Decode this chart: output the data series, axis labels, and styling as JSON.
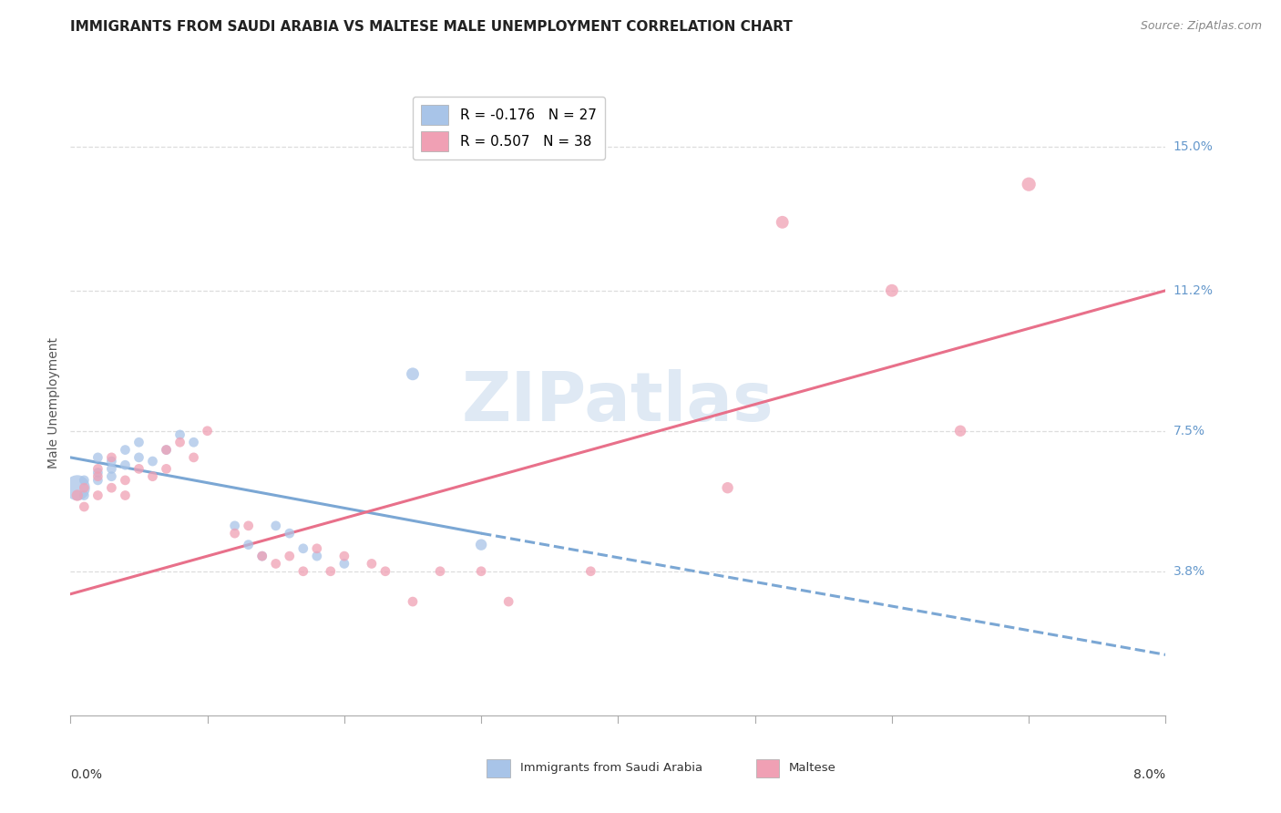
{
  "title": "IMMIGRANTS FROM SAUDI ARABIA VS MALTESE MALE UNEMPLOYMENT CORRELATION CHART",
  "source": "Source: ZipAtlas.com",
  "ylabel": "Male Unemployment",
  "ytick_labels": [
    "15.0%",
    "11.2%",
    "7.5%",
    "3.8%"
  ],
  "ytick_values": [
    0.15,
    0.112,
    0.075,
    0.038
  ],
  "xmin": 0.0,
  "xmax": 0.08,
  "ymin": 0.0,
  "ymax": 0.165,
  "legend_entries": [
    {
      "label": "R = -0.176   N = 27",
      "color": "#a8c8f0"
    },
    {
      "label": "R = 0.507   N = 38",
      "color": "#f0a8b8"
    }
  ],
  "watermark": "ZIPatlas",
  "blue_color": "#a8c4e8",
  "pink_color": "#f0a0b4",
  "blue_scatter": [
    [
      0.0005,
      0.06
    ],
    [
      0.001,
      0.062
    ],
    [
      0.001,
      0.058
    ],
    [
      0.002,
      0.064
    ],
    [
      0.002,
      0.062
    ],
    [
      0.002,
      0.068
    ],
    [
      0.003,
      0.065
    ],
    [
      0.003,
      0.067
    ],
    [
      0.003,
      0.063
    ],
    [
      0.004,
      0.066
    ],
    [
      0.004,
      0.07
    ],
    [
      0.005,
      0.068
    ],
    [
      0.005,
      0.072
    ],
    [
      0.006,
      0.067
    ],
    [
      0.007,
      0.07
    ],
    [
      0.008,
      0.074
    ],
    [
      0.009,
      0.072
    ],
    [
      0.012,
      0.05
    ],
    [
      0.013,
      0.045
    ],
    [
      0.014,
      0.042
    ],
    [
      0.015,
      0.05
    ],
    [
      0.016,
      0.048
    ],
    [
      0.017,
      0.044
    ],
    [
      0.018,
      0.042
    ],
    [
      0.02,
      0.04
    ],
    [
      0.025,
      0.09
    ],
    [
      0.03,
      0.045
    ]
  ],
  "blue_scatter_sizes": [
    400,
    60,
    60,
    60,
    60,
    60,
    60,
    60,
    60,
    60,
    60,
    60,
    60,
    60,
    60,
    60,
    60,
    60,
    60,
    60,
    60,
    60,
    60,
    60,
    60,
    100,
    80
  ],
  "pink_scatter": [
    [
      0.0005,
      0.058
    ],
    [
      0.001,
      0.06
    ],
    [
      0.001,
      0.055
    ],
    [
      0.002,
      0.063
    ],
    [
      0.002,
      0.058
    ],
    [
      0.002,
      0.065
    ],
    [
      0.003,
      0.06
    ],
    [
      0.003,
      0.068
    ],
    [
      0.004,
      0.062
    ],
    [
      0.004,
      0.058
    ],
    [
      0.005,
      0.065
    ],
    [
      0.006,
      0.063
    ],
    [
      0.007,
      0.07
    ],
    [
      0.007,
      0.065
    ],
    [
      0.008,
      0.072
    ],
    [
      0.009,
      0.068
    ],
    [
      0.01,
      0.075
    ],
    [
      0.012,
      0.048
    ],
    [
      0.013,
      0.05
    ],
    [
      0.014,
      0.042
    ],
    [
      0.015,
      0.04
    ],
    [
      0.016,
      0.042
    ],
    [
      0.017,
      0.038
    ],
    [
      0.018,
      0.044
    ],
    [
      0.019,
      0.038
    ],
    [
      0.02,
      0.042
    ],
    [
      0.022,
      0.04
    ],
    [
      0.023,
      0.038
    ],
    [
      0.025,
      0.03
    ],
    [
      0.027,
      0.038
    ],
    [
      0.03,
      0.038
    ],
    [
      0.032,
      0.03
    ],
    [
      0.038,
      0.038
    ],
    [
      0.048,
      0.06
    ],
    [
      0.052,
      0.13
    ],
    [
      0.06,
      0.112
    ],
    [
      0.065,
      0.075
    ],
    [
      0.07,
      0.14
    ]
  ],
  "pink_scatter_sizes": [
    80,
    60,
    60,
    60,
    60,
    60,
    60,
    60,
    60,
    60,
    60,
    60,
    60,
    60,
    60,
    60,
    60,
    60,
    60,
    60,
    60,
    60,
    60,
    60,
    60,
    60,
    60,
    60,
    60,
    60,
    60,
    60,
    60,
    80,
    100,
    100,
    80,
    120
  ],
  "blue_line_solid": [
    [
      0.0,
      0.068
    ],
    [
      0.03,
      0.048
    ]
  ],
  "blue_line_dash": [
    [
      0.03,
      0.048
    ],
    [
      0.08,
      0.016
    ]
  ],
  "pink_line": [
    [
      0.0,
      0.032
    ],
    [
      0.08,
      0.112
    ]
  ],
  "blue_line_color": "#7ba7d4",
  "pink_line_color": "#e8708a",
  "grid_color": "#dddddd",
  "background_color": "#ffffff",
  "title_fontsize": 11,
  "axis_label_fontsize": 10,
  "tick_fontsize": 10,
  "legend_fontsize": 11,
  "ytick_color": "#6699cc",
  "xtick_color": "#333333"
}
